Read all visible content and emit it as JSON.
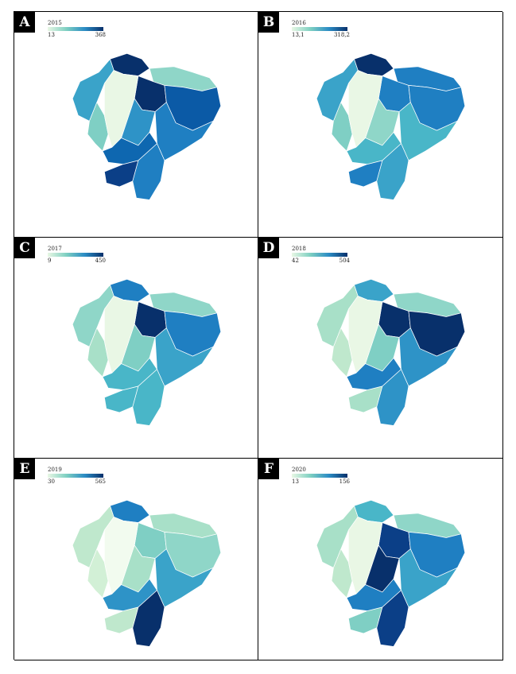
{
  "panels": [
    {
      "letter": "A",
      "year": "2015",
      "min": "13",
      "max": "368",
      "colors": {
        "n": "#08306b",
        "ne": "#8fd6c8",
        "central_e": "#08306b",
        "east": "#0b5aa6",
        "se": "#1f7fc2",
        "south": "#1f7fc2",
        "sw": "#0b3f87",
        "west": "#3aa3c9",
        "coast": "#7fcfc4",
        "highland": "#e9f7e5",
        "mid": "#2e93c7",
        "center": "#0e67b0"
      }
    },
    {
      "letter": "B",
      "year": "2016",
      "min": "13,1",
      "max": "318,2",
      "colors": {
        "n": "#08306b",
        "ne": "#1f7fc2",
        "central_e": "#1f7fc2",
        "east": "#1f7fc2",
        "se": "#49b6c8",
        "south": "#3aa3c9",
        "sw": "#1f7fc2",
        "west": "#3aa3c9",
        "coast": "#7fcfc4",
        "highland": "#e9f7e5",
        "mid": "#8fd6c8",
        "center": "#49b6c8"
      }
    },
    {
      "letter": "C",
      "year": "2017",
      "min": "9",
      "max": "450",
      "colors": {
        "n": "#1f7fc2",
        "ne": "#8fd6c8",
        "central_e": "#08306b",
        "east": "#1f7fc2",
        "se": "#3aa3c9",
        "south": "#49b6c8",
        "sw": "#49b6c8",
        "west": "#8fd6c8",
        "coast": "#a8e0c8",
        "highland": "#e9f7e5",
        "mid": "#7fcfc4",
        "center": "#49b6c8"
      }
    },
    {
      "letter": "D",
      "year": "2018",
      "min": "42",
      "max": "504",
      "colors": {
        "n": "#3aa3c9",
        "ne": "#8fd6c8",
        "central_e": "#08306b",
        "east": "#08306b",
        "se": "#2e93c7",
        "south": "#2e93c7",
        "sw": "#a8e0c8",
        "west": "#a8e0c8",
        "coast": "#bfe8cd",
        "highland": "#e9f7e5",
        "mid": "#7fcfc4",
        "center": "#1f7fc2"
      }
    },
    {
      "letter": "E",
      "year": "2019",
      "min": "30",
      "max": "565",
      "colors": {
        "n": "#1f7fc2",
        "ne": "#a8e0c8",
        "central_e": "#7fcfc4",
        "east": "#8fd6c8",
        "se": "#3aa3c9",
        "south": "#08306b",
        "sw": "#bfe8cd",
        "west": "#bfe8cd",
        "coast": "#d2f0d6",
        "highland": "#f2fbef",
        "mid": "#a8e0c8",
        "center": "#2e93c7"
      }
    },
    {
      "letter": "F",
      "year": "2020",
      "min": "13",
      "max": "156",
      "colors": {
        "n": "#49b6c8",
        "ne": "#8fd6c8",
        "central_e": "#0b3f87",
        "east": "#1f7fc2",
        "se": "#3aa3c9",
        "south": "#0b3f87",
        "sw": "#7fcfc4",
        "west": "#a8e0c8",
        "coast": "#bfe8cd",
        "highland": "#e9f7e5",
        "mid": "#08306b",
        "center": "#1f7fc2"
      }
    }
  ]
}
